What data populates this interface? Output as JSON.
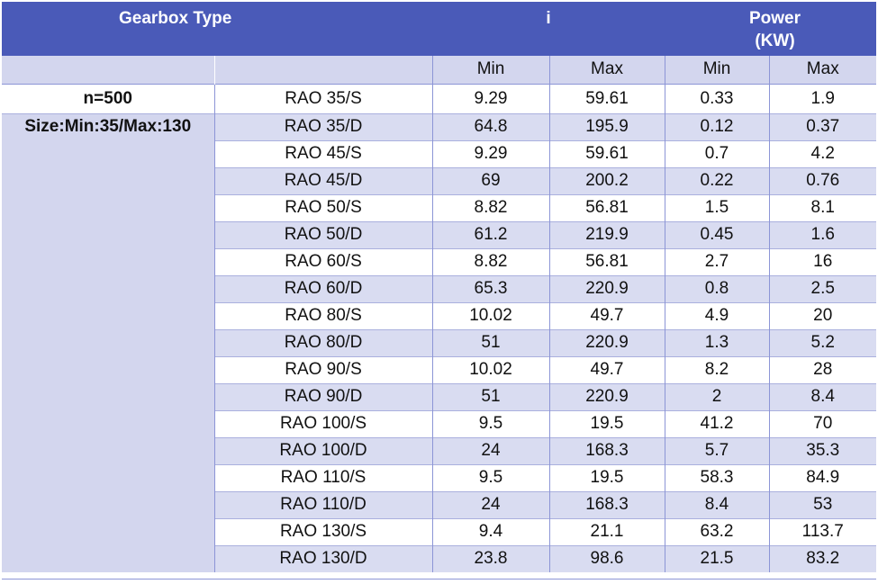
{
  "header": {
    "col_gearbox": "Gearbox Type",
    "col_i": "i",
    "col_power_line1": "Power",
    "col_power_line2": "(KW)"
  },
  "subheader": {
    "i_min": "Min",
    "i_max": "Max",
    "p_min": "Min",
    "p_max": "Max"
  },
  "labels": {
    "speed": "n=500",
    "size": "Size:Min:35/Max:130"
  },
  "rows": [
    {
      "type": "RAO 35/S",
      "i_min": "9.29",
      "i_max": "59.61",
      "p_min": "0.33",
      "p_max": "1.9"
    },
    {
      "type": "RAO 35/D",
      "i_min": "64.8",
      "i_max": "195.9",
      "p_min": "0.12",
      "p_max": "0.37"
    },
    {
      "type": "RAO 45/S",
      "i_min": "9.29",
      "i_max": "59.61",
      "p_min": "0.7",
      "p_max": "4.2"
    },
    {
      "type": "RAO 45/D",
      "i_min": "69",
      "i_max": "200.2",
      "p_min": "0.22",
      "p_max": "0.76"
    },
    {
      "type": "RAO 50/S",
      "i_min": "8.82",
      "i_max": "56.81",
      "p_min": "1.5",
      "p_max": "8.1"
    },
    {
      "type": "RAO 50/D",
      "i_min": "61.2",
      "i_max": "219.9",
      "p_min": "0.45",
      "p_max": "1.6"
    },
    {
      "type": "RAO 60/S",
      "i_min": "8.82",
      "i_max": "56.81",
      "p_min": "2.7",
      "p_max": "16"
    },
    {
      "type": "RAO 60/D",
      "i_min": "65.3",
      "i_max": "220.9",
      "p_min": "0.8",
      "p_max": "2.5"
    },
    {
      "type": "RAO 80/S",
      "i_min": "10.02",
      "i_max": "49.7",
      "p_min": "4.9",
      "p_max": "20"
    },
    {
      "type": "RAO 80/D",
      "i_min": "51",
      "i_max": "220.9",
      "p_min": "1.3",
      "p_max": "5.2"
    },
    {
      "type": "RAO 90/S",
      "i_min": "10.02",
      "i_max": "49.7",
      "p_min": "8.2",
      "p_max": "28"
    },
    {
      "type": "RAO 90/D",
      "i_min": "51",
      "i_max": "220.9",
      "p_min": "2",
      "p_max": "8.4"
    },
    {
      "type": "RAO 100/S",
      "i_min": "9.5",
      "i_max": "19.5",
      "p_min": "41.2",
      "p_max": "70"
    },
    {
      "type": "RAO 100/D",
      "i_min": "24",
      "i_max": "168.3",
      "p_min": "5.7",
      "p_max": "35.3"
    },
    {
      "type": "RAO 110/S",
      "i_min": "9.5",
      "i_max": "19.5",
      "p_min": "58.3",
      "p_max": "84.9"
    },
    {
      "type": "RAO 110/D",
      "i_min": "24",
      "i_max": "168.3",
      "p_min": "8.4",
      "p_max": "53"
    },
    {
      "type": "RAO 130/S",
      "i_min": "9.4",
      "i_max": "21.1",
      "p_min": "63.2",
      "p_max": "113.7"
    },
    {
      "type": "RAO 130/D",
      "i_min": "23.8",
      "i_max": "98.6",
      "p_min": "21.5",
      "p_max": "83.2"
    }
  ],
  "colors": {
    "header_bg": "#4a5ab8",
    "subheader_bg": "#d3d6ee",
    "row_shade": "#d9dcf1",
    "grid_line": "#8c95d6"
  }
}
